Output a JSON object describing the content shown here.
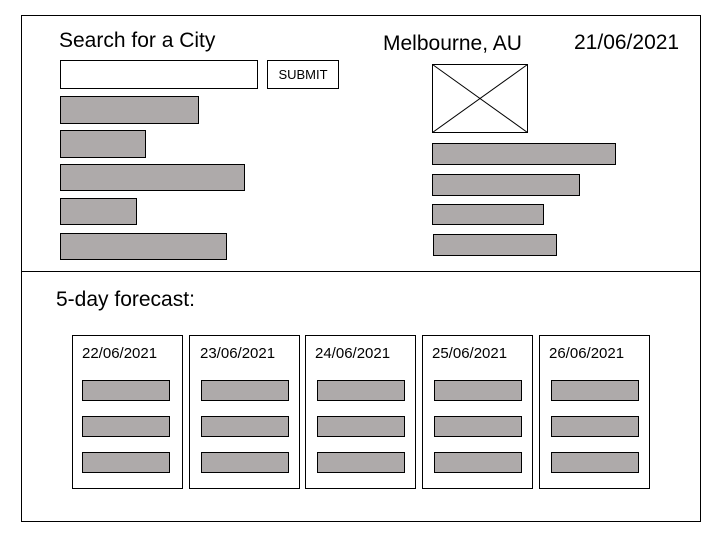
{
  "search": {
    "title": "Search for a City",
    "input_value": "",
    "submit_label": "SUBMIT",
    "history": [
      "",
      "",
      "",
      "",
      ""
    ]
  },
  "current": {
    "city": "Melbourne, AU",
    "date": "21/06/2021",
    "image_icon": "image-placeholder-icon",
    "details": [
      "",
      "",
      "",
      ""
    ]
  },
  "forecast": {
    "title": "5-day forecast:",
    "days": [
      {
        "date": "22/06/2021"
      },
      {
        "date": "23/06/2021"
      },
      {
        "date": "24/06/2021"
      },
      {
        "date": "25/06/2021"
      },
      {
        "date": "26/06/2021"
      }
    ]
  },
  "colors": {
    "placeholder_fill": "#aeaaaa",
    "outline": "#000000"
  }
}
